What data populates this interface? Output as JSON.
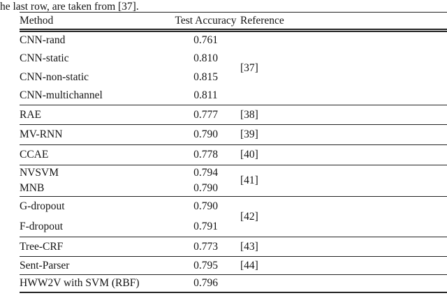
{
  "page": {
    "caption": "he last row, are taken from [37]."
  },
  "table": {
    "headers": {
      "method": "Method",
      "accuracy": "Test Accuracy",
      "reference": "Reference"
    },
    "groups": [
      {
        "reference": "[37]",
        "rows": [
          {
            "method": "CNN-rand",
            "accuracy": "0.761"
          },
          {
            "method": "CNN-static",
            "accuracy": "0.810"
          },
          {
            "method": "CNN-non-static",
            "accuracy": "0.815"
          },
          {
            "method": "CNN-multichannel",
            "accuracy": "0.811"
          }
        ]
      },
      {
        "reference": "[38]",
        "rows": [
          {
            "method": "RAE",
            "accuracy": "0.777"
          }
        ]
      },
      {
        "reference": "[39]",
        "rows": [
          {
            "method": "MV-RNN",
            "accuracy": "0.790"
          }
        ]
      },
      {
        "reference": "[40]",
        "rows": [
          {
            "method": "CCAE",
            "accuracy": "0.778"
          }
        ]
      },
      {
        "reference": "[41]",
        "rows": [
          {
            "method": "NVSVM",
            "accuracy": "0.794"
          },
          {
            "method": "MNB",
            "accuracy": "0.790"
          }
        ]
      },
      {
        "reference": "[42]",
        "rows": [
          {
            "method": "G-dropout",
            "accuracy": "0.790"
          },
          {
            "method": "F-dropout",
            "accuracy": "0.791"
          }
        ]
      },
      {
        "reference": "[43]",
        "rows": [
          {
            "method": "Tree-CRF",
            "accuracy": "0.773"
          }
        ]
      },
      {
        "reference": "[44]",
        "rows": [
          {
            "method": "Sent-Parser",
            "accuracy": "0.795"
          }
        ]
      },
      {
        "reference": "",
        "rows": [
          {
            "method": "HWW2V with SVM (RBF)",
            "accuracy": "0.796"
          }
        ]
      }
    ],
    "colors": {
      "text": "#141414",
      "rule": "#222222",
      "background": "#ffffff"
    }
  }
}
